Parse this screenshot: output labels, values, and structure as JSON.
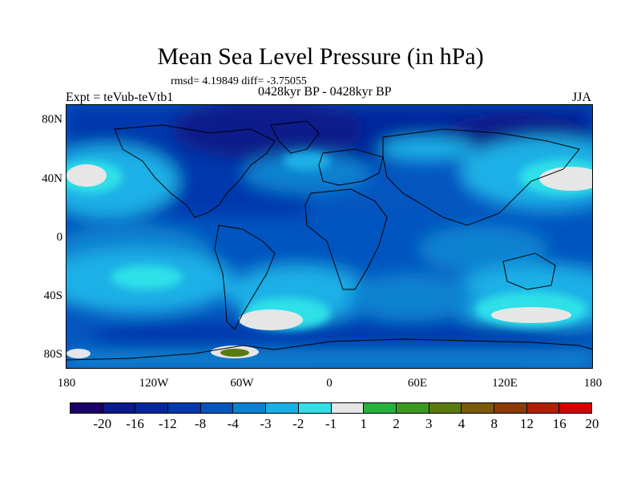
{
  "header": {
    "title": "Mean Sea Level Pressure (in hPa)",
    "stats": "rmsd= 4.19849 diff= -3.75055",
    "subtitle": "0428kyr BP - 0428kyr BP",
    "experiment": "Expt = teVub-teVtb1",
    "season": "JJA"
  },
  "axes": {
    "y_ticks": [
      "80N",
      "40N",
      "0",
      "40S",
      "80S"
    ],
    "x_ticks": [
      "180",
      "120W",
      "60W",
      "0",
      "60E",
      "120E",
      "180"
    ]
  },
  "colorbar": {
    "colors": [
      "#1c006a",
      "#0a1a8a",
      "#06279c",
      "#0439ad",
      "#0555bf",
      "#0a82d0",
      "#1ab0e6",
      "#2fe0e8",
      "#e6e6e6",
      "#27b23b",
      "#3c9a20",
      "#5a7a10",
      "#7a5a08",
      "#8c3a06",
      "#b21e04",
      "#d40000"
    ],
    "labels": [
      "-20",
      "-16",
      "-12",
      "-8",
      "-4",
      "-3",
      "-2",
      "-1",
      "1",
      "2",
      "3",
      "4",
      "8",
      "12",
      "16",
      "20"
    ]
  }
}
